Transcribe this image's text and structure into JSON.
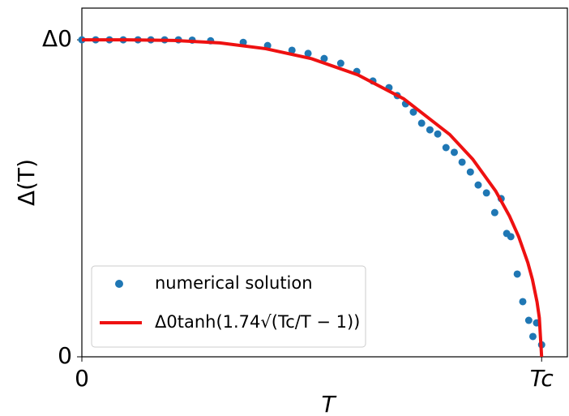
{
  "chart_data": {
    "type": "scatter",
    "xlabel": "T",
    "ylabel": "Δ(T)",
    "xlim": [
      0,
      1.056
    ],
    "ylim": [
      0,
      1.1
    ],
    "xticks": [
      0,
      {
        "value": 1,
        "label": "Tc"
      }
    ],
    "yticks": [
      0,
      {
        "value": 1,
        "label": "Δ0"
      }
    ],
    "legend": "lower left",
    "series": [
      {
        "name": "numerical solution",
        "color": "#1f77b4",
        "type": "scatter",
        "x": [
          0,
          0.03,
          0.06,
          0.09,
          0.122,
          0.15,
          0.18,
          0.21,
          0.24,
          0.28,
          0.351,
          0.404,
          0.457,
          0.492,
          0.527,
          0.563,
          0.598,
          0.633,
          0.668,
          0.686,
          0.704,
          0.721,
          0.739,
          0.757,
          0.774,
          0.792,
          0.81,
          0.827,
          0.845,
          0.862,
          0.88,
          0.898,
          0.912,
          0.924,
          0.933,
          0.947,
          0.959,
          0.972,
          0.981,
          0.989,
          1.0
        ],
        "values": [
          1.0,
          1.0,
          1.0,
          1.0,
          1.0,
          1.0,
          1.0,
          1.0,
          0.999,
          0.997,
          0.992,
          0.982,
          0.967,
          0.957,
          0.941,
          0.926,
          0.9,
          0.87,
          0.849,
          0.824,
          0.798,
          0.772,
          0.737,
          0.716,
          0.703,
          0.66,
          0.645,
          0.614,
          0.583,
          0.542,
          0.517,
          0.455,
          0.499,
          0.389,
          0.379,
          0.261,
          0.174,
          0.115,
          0.064,
          0.107,
          0.038
        ]
      },
      {
        "name": "Δ0tanh(1.74√(Tc/T − 1))",
        "color": "#ee1111",
        "type": "line",
        "x": [
          0,
          0.1,
          0.2,
          0.3,
          0.4,
          0.5,
          0.6,
          0.7,
          0.8,
          0.85,
          0.9,
          0.93,
          0.95,
          0.97,
          0.98,
          0.99,
          0.995,
          1.0
        ],
        "values": [
          1.0,
          0.9999,
          0.9981,
          0.9902,
          0.972,
          0.9403,
          0.8897,
          0.814,
          0.7014,
          0.6236,
          0.523,
          0.4441,
          0.3793,
          0.2968,
          0.2436,
          0.1731,
          0.1228,
          0
        ]
      }
    ]
  }
}
